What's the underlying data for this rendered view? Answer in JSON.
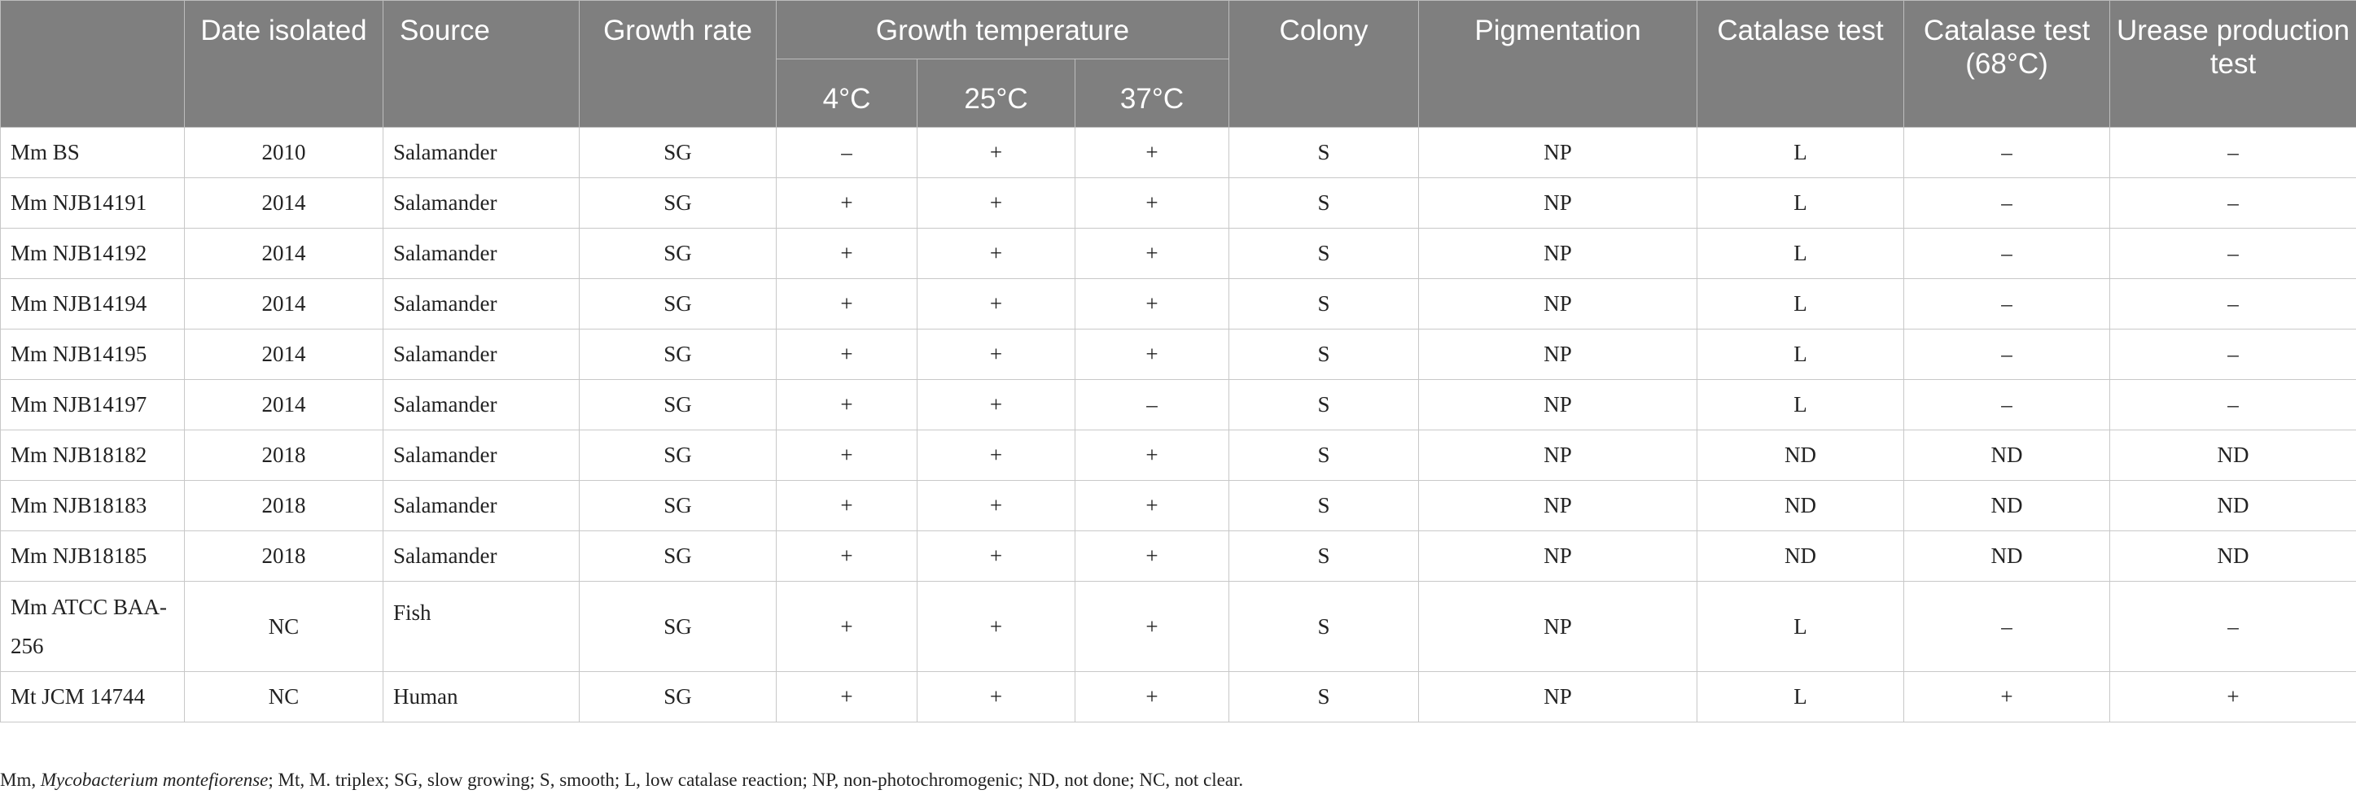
{
  "headers": {
    "strain": "",
    "date_isolated": "Date isolated",
    "source": "Source",
    "growth_rate": "Growth rate",
    "growth_temperature": "Growth temperature",
    "temp_4": "4°C",
    "temp_25": "25°C",
    "temp_37": "37°C",
    "colony": "Colony",
    "pigmentation": "Pigmentation",
    "catalase_test": "Catalase test",
    "catalase_test_68": "Catalase test (68°C)",
    "urease_production_test": "Urease production test"
  },
  "rows": [
    {
      "strain": "Mm BS",
      "date": "2010",
      "source": "Salamander",
      "growth_rate": "SG",
      "t4": "–",
      "t25": "+",
      "t37": "+",
      "colony": "S",
      "pigmentation": "NP",
      "catalase": "L",
      "catalase68": "–",
      "urease": "–"
    },
    {
      "strain": "Mm NJB14191",
      "date": "2014",
      "source": "Salamander",
      "growth_rate": "SG",
      "t4": "+",
      "t25": "+",
      "t37": "+",
      "colony": "S",
      "pigmentation": "NP",
      "catalase": "L",
      "catalase68": "–",
      "urease": "–"
    },
    {
      "strain": "Mm NJB14192",
      "date": "2014",
      "source": "Salamander",
      "growth_rate": "SG",
      "t4": "+",
      "t25": "+",
      "t37": "+",
      "colony": "S",
      "pigmentation": "NP",
      "catalase": "L",
      "catalase68": "–",
      "urease": "–"
    },
    {
      "strain": "Mm NJB14194",
      "date": "2014",
      "source": "Salamander",
      "growth_rate": "SG",
      "t4": "+",
      "t25": "+",
      "t37": "+",
      "colony": "S",
      "pigmentation": "NP",
      "catalase": "L",
      "catalase68": "–",
      "urease": "–"
    },
    {
      "strain": "Mm NJB14195",
      "date": "2014",
      "source": "Salamander",
      "growth_rate": "SG",
      "t4": "+",
      "t25": "+",
      "t37": "+",
      "colony": "S",
      "pigmentation": "NP",
      "catalase": "L",
      "catalase68": "–",
      "urease": "–"
    },
    {
      "strain": "Mm NJB14197",
      "date": "2014",
      "source": "Salamander",
      "growth_rate": "SG",
      "t4": "+",
      "t25": "+",
      "t37": "–",
      "colony": "S",
      "pigmentation": "NP",
      "catalase": "L",
      "catalase68": "–",
      "urease": "–"
    },
    {
      "strain": "Mm NJB18182",
      "date": "2018",
      "source": "Salamander",
      "growth_rate": "SG",
      "t4": "+",
      "t25": "+",
      "t37": "+",
      "colony": "S",
      "pigmentation": "NP",
      "catalase": "ND",
      "catalase68": "ND",
      "urease": "ND"
    },
    {
      "strain": "Mm NJB18183",
      "date": "2018",
      "source": "Salamander",
      "growth_rate": "SG",
      "t4": "+",
      "t25": "+",
      "t37": "+",
      "colony": "S",
      "pigmentation": "NP",
      "catalase": "ND",
      "catalase68": "ND",
      "urease": "ND"
    },
    {
      "strain": "Mm NJB18185",
      "date": "2018",
      "source": "Salamander",
      "growth_rate": "SG",
      "t4": "+",
      "t25": "+",
      "t37": "+",
      "colony": "S",
      "pigmentation": "NP",
      "catalase": "ND",
      "catalase68": "ND",
      "urease": "ND"
    },
    {
      "strain": "Mm ATCC BAA-256",
      "date": "NC",
      "source": "Fish",
      "growth_rate": "SG",
      "t4": "+",
      "t25": "+",
      "t37": "+",
      "colony": "S",
      "pigmentation": "NP",
      "catalase": "L",
      "catalase68": "–",
      "urease": "–"
    },
    {
      "strain": "Mt JCM 14744",
      "date": "NC",
      "source": "Human",
      "growth_rate": "SG",
      "t4": "+",
      "t25": "+",
      "t37": "+",
      "colony": "S",
      "pigmentation": "NP",
      "catalase": "L",
      "catalase68": "+",
      "urease": "+"
    }
  ],
  "footnote": {
    "part1": "Mm, ",
    "part2_italic": "Mycobacterium montefiorense",
    "part3": "; Mt, M. triplex; SG, slow growing; S, smooth; L, low catalase reaction; NP, non-photochromogenic; ND, not done; NC, not clear."
  }
}
